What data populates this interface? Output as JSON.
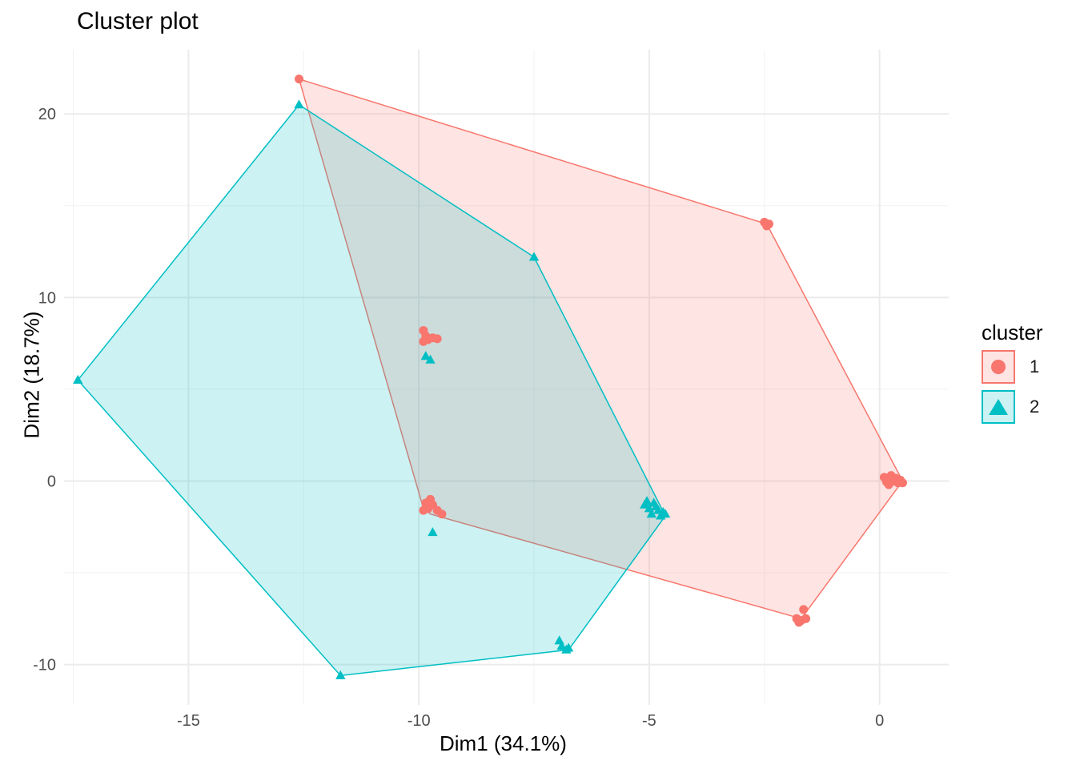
{
  "chart_data": {
    "type": "scatter",
    "title": "Cluster plot",
    "xlabel": "Dim1 (34.1%)",
    "ylabel": "Dim2 (18.7%)",
    "xlim": [
      -17.7,
      1.5
    ],
    "ylim": [
      -12.2,
      23.5
    ],
    "xticks": [
      -15,
      -10,
      -5,
      0
    ],
    "yticks": [
      -10,
      0,
      10,
      20
    ],
    "xtick_labels": [
      "-15",
      "-10",
      "-5",
      "0"
    ],
    "ytick_labels": [
      "-10",
      "0",
      "10",
      "20"
    ],
    "grid": true,
    "legend": {
      "title": "cluster",
      "position": "right"
    },
    "series": [
      {
        "name": "1",
        "color": "#F8766D",
        "marker": "circle",
        "points": [
          [
            -12.6,
            21.9
          ],
          [
            -2.5,
            14.1
          ],
          [
            -2.45,
            13.9
          ],
          [
            -2.4,
            14.0
          ],
          [
            -9.9,
            8.2
          ],
          [
            -9.85,
            7.9
          ],
          [
            -9.8,
            7.7
          ],
          [
            -9.7,
            7.8
          ],
          [
            -9.6,
            7.75
          ],
          [
            -9.9,
            7.6
          ],
          [
            -9.85,
            -1.2
          ],
          [
            -9.8,
            -1.5
          ],
          [
            -9.7,
            -1.3
          ],
          [
            -9.6,
            -1.6
          ],
          [
            -9.5,
            -1.8
          ],
          [
            -9.75,
            -1.0
          ],
          [
            -9.9,
            -1.6
          ],
          [
            0.1,
            0.2
          ],
          [
            0.2,
            0.1
          ],
          [
            0.3,
            0.0
          ],
          [
            0.4,
            -0.1
          ],
          [
            0.45,
            0.05
          ],
          [
            0.25,
            0.3
          ],
          [
            0.15,
            -0.05
          ],
          [
            0.35,
            0.15
          ],
          [
            0.5,
            -0.1
          ],
          [
            0.2,
            -0.2
          ],
          [
            -1.8,
            -7.5
          ],
          [
            -1.7,
            -7.6
          ],
          [
            -1.6,
            -7.5
          ],
          [
            -1.65,
            -7.0
          ],
          [
            -1.75,
            -7.7
          ]
        ],
        "hull": [
          [
            -12.6,
            21.9
          ],
          [
            -2.45,
            14.0
          ],
          [
            0.5,
            0.0
          ],
          [
            -1.7,
            -7.5
          ],
          [
            -9.75,
            -1.8
          ],
          [
            -9.9,
            -1.5
          ]
        ]
      },
      {
        "name": "2",
        "color": "#00BFC4",
        "marker": "triangle",
        "points": [
          [
            -12.6,
            20.5
          ],
          [
            -7.5,
            12.2
          ],
          [
            -17.4,
            5.5
          ],
          [
            -9.85,
            6.8
          ],
          [
            -9.75,
            6.6
          ],
          [
            -9.7,
            -2.8
          ],
          [
            -5.1,
            -1.3
          ],
          [
            -5.0,
            -1.5
          ],
          [
            -4.9,
            -1.2
          ],
          [
            -4.8,
            -1.6
          ],
          [
            -4.7,
            -1.7
          ],
          [
            -4.85,
            -1.4
          ],
          [
            -4.95,
            -1.8
          ],
          [
            -4.75,
            -1.9
          ],
          [
            -5.05,
            -1.1
          ],
          [
            -4.65,
            -1.8
          ],
          [
            -6.95,
            -8.7
          ],
          [
            -6.9,
            -9.0
          ],
          [
            -6.8,
            -9.2
          ],
          [
            -6.75,
            -9.1
          ],
          [
            -11.7,
            -10.6
          ]
        ],
        "hull": [
          [
            -12.6,
            20.5
          ],
          [
            -7.5,
            12.2
          ],
          [
            -4.65,
            -1.9
          ],
          [
            -6.75,
            -9.2
          ],
          [
            -11.7,
            -10.6
          ],
          [
            -17.4,
            5.5
          ]
        ]
      }
    ]
  }
}
